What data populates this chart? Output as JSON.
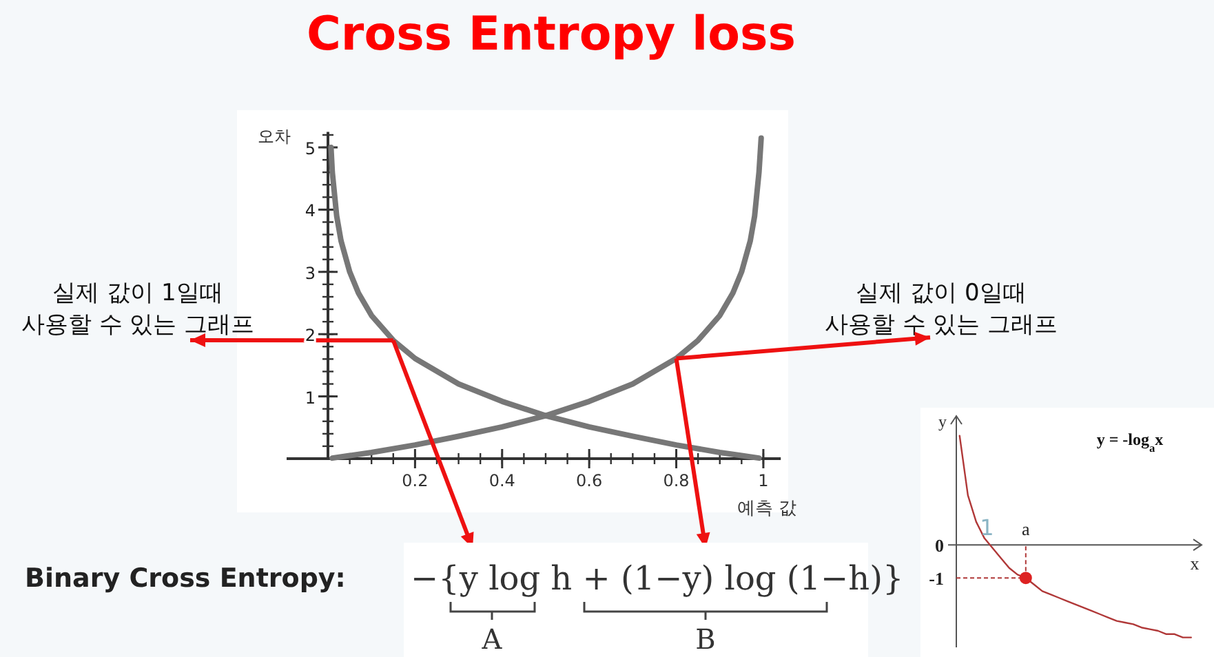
{
  "chart_data": [
    {
      "type": "line",
      "title": "Cross Entropy loss",
      "xlabel": "예측 값",
      "ylabel": "오차",
      "x": [
        0.007,
        0.01,
        0.02,
        0.03,
        0.05,
        0.07,
        0.1,
        0.15,
        0.2,
        0.3,
        0.4,
        0.5,
        0.6,
        0.7,
        0.8,
        0.9,
        0.95,
        0.99
      ],
      "series": [
        {
          "color": "#777777",
          "values": [
            5,
            4.6,
            3.9,
            3.5,
            3.0,
            2.66,
            2.3,
            1.9,
            1.61,
            1.2,
            0.92,
            0.69,
            0.51,
            0.36,
            0.22,
            0.1,
            0.05,
            0.01
          ]
        },
        {
          "color": "#777777",
          "x": [
            0.01,
            0.05,
            0.1,
            0.2,
            0.3,
            0.4,
            0.5,
            0.6,
            0.7,
            0.8,
            0.85,
            0.9,
            0.93,
            0.95,
            0.97,
            0.98,
            0.99,
            0.995
          ],
          "values": [
            0.01,
            0.05,
            0.1,
            0.22,
            0.36,
            0.51,
            0.69,
            0.92,
            1.2,
            1.61,
            1.9,
            2.3,
            2.66,
            3.0,
            3.5,
            3.9,
            4.6,
            5.15
          ]
        }
      ],
      "xlim": [
        0,
        1.04
      ],
      "ylim": [
        0,
        5.25
      ],
      "xticks": [
        0.2,
        0.4,
        0.6,
        0.8,
        1
      ],
      "yticks": [
        1,
        2,
        3,
        4,
        5
      ],
      "annotations": [
        {
          "text": "실제 값이 1일때\n사용할 수 있는 그래프",
          "x": 0.15,
          "y": 1.9
        },
        {
          "text": "실제 값이 0일때\n사용할 수 있는 그래프",
          "x": 0.8,
          "y": 1.61
        },
        "Binary Cross Entropy:",
        "−{y log h + (1−y) log (1−h)}",
        "A",
        "B"
      ]
    },
    {
      "type": "line",
      "title": "y = -log$_{a}$x",
      "xlabel": "x",
      "ylabel": "y",
      "categories": [
        null,
        null,
        null,
        null,
        null,
        null,
        null,
        null,
        null,
        null,
        null,
        null,
        null,
        null,
        null,
        null,
        null,
        null,
        null,
        null,
        null,
        null,
        null,
        null,
        null,
        null,
        null,
        null,
        null
      ],
      "series": [
        {
          "color": "#b03838",
          "values": [
            3.3,
            1.5,
            0.7,
            0.2,
            -0.1,
            -0.4,
            -0.7,
            -0.9,
            -1,
            -1.2,
            -1.4,
            -1.5,
            -1.6,
            -1.7,
            -1.8,
            -1.9,
            -2.0,
            -2.1,
            -2.2,
            -2.3,
            -2.35,
            -2.4,
            -2.5,
            -2.55,
            -2.6,
            -2.7,
            -2.7,
            -2.8,
            -2.8
          ]
        },
        {
          "type": "scatter",
          "color": "#dd2222",
          "marker": "circle",
          "values": [
            null,
            null,
            null,
            null,
            null,
            null,
            null,
            null,
            -1,
            null,
            null,
            null,
            null,
            null,
            null,
            null,
            null,
            null,
            null,
            null,
            null,
            null,
            null,
            null,
            null,
            null,
            null,
            null,
            null
          ]
        }
      ],
      "ylim": [
        -3.1,
        3.9
      ],
      "yticks": [
        0,
        -1
      ],
      "ref_lines": [
        {
          "axis": "y",
          "value": -1,
          "color": "#b03838",
          "line_style": "dashed"
        }
      ],
      "annotations": [
        "1",
        "a"
      ]
    }
  ]
}
